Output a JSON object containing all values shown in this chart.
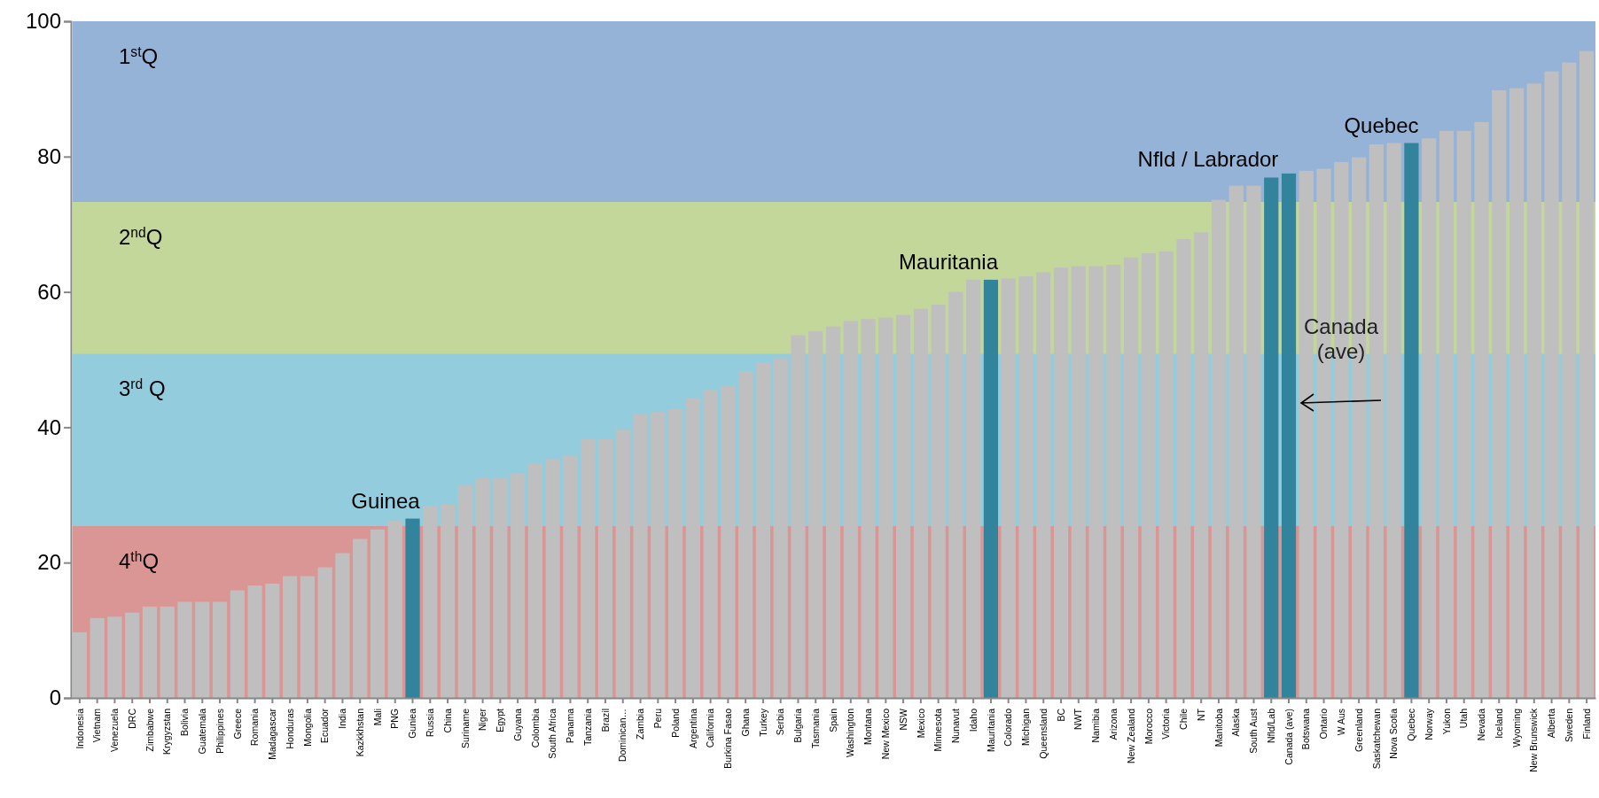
{
  "chart_data": {
    "type": "bar",
    "categories": [
      "Indonesia",
      "Vietnam",
      "Venezuela",
      "DRC",
      "Zimbabwe",
      "Krygyzstan",
      "Bolivia",
      "Guatemala",
      "Philippines",
      "Greece",
      "Romania",
      "Madagascar",
      "Honduras",
      "Mongolia",
      "Ecuador",
      "India",
      "Kazkkhstan",
      "Mali",
      "PNG",
      "Guniea",
      "Russia",
      "China",
      "Suriname",
      "Niger",
      "Egypt",
      "Guyana",
      "Colombia",
      "South Africa",
      "Panama",
      "Tanzania",
      "Brazil",
      "Dominican…",
      "Zambia",
      "Peru",
      "Poland",
      "Argentina",
      "California",
      "Burkina Fasao",
      "Ghana",
      "Turkey",
      "Serbia",
      "Bulgaria",
      "Tasmania",
      "Spain",
      "Washington",
      "Montana",
      "New Mexico",
      "NSW",
      "Mexico",
      "Minnesota",
      "Nunavut",
      "Idaho",
      "Mauritania",
      "Colorado",
      "Michigan",
      "Queensland",
      "BC",
      "NWT",
      "Namibia",
      "Arizona",
      "New Zealand",
      "Morocco",
      "Victoria",
      "Chile",
      "NT",
      "Manitoba",
      "Alaska",
      "South Aust",
      "Nfld/Lab",
      "Canada (ave)",
      "Botswana",
      "Ontario",
      "W Aus",
      "Greenland",
      "Saskatchewan",
      "Nova Scotia",
      "Quebec",
      "Norway",
      "Yukon",
      "Utah",
      "Nevada",
      "Iceland",
      "Wyoming",
      "New Brunswick",
      "Alberta",
      "Sweden",
      "Finland"
    ],
    "values": [
      9.7,
      11.8,
      12.0,
      12.6,
      13.5,
      13.5,
      14.2,
      14.2,
      14.2,
      15.9,
      16.6,
      16.9,
      18.0,
      18.0,
      19.3,
      21.4,
      23.5,
      24.9,
      26.2,
      26.5,
      28.4,
      28.6,
      31.4,
      32.5,
      32.5,
      33.2,
      34.6,
      35.3,
      35.8,
      38.3,
      38.3,
      39.7,
      42.0,
      42.3,
      42.7,
      44.3,
      45.5,
      46.1,
      48.3,
      49.6,
      50.2,
      53.6,
      54.2,
      54.9,
      55.7,
      56.0,
      56.2,
      56.6,
      57.5,
      58.1,
      60.0,
      61.8,
      61.8,
      62.0,
      62.3,
      62.9,
      63.6,
      63.8,
      63.8,
      64.0,
      65.1,
      65.7,
      66.0,
      67.8,
      68.8,
      73.6,
      75.7,
      75.7,
      76.9,
      77.5,
      77.9,
      78.2,
      79.2,
      79.9,
      81.8,
      82.0,
      82.0,
      82.7,
      83.8,
      83.8,
      85.1,
      89.8,
      90.1,
      90.8,
      92.6,
      93.9,
      95.6
    ],
    "colors": [
      "#bfbfbf",
      "#bfbfbf",
      "#bfbfbf",
      "#bfbfbf",
      "#bfbfbf",
      "#bfbfbf",
      "#bfbfbf",
      "#bfbfbf",
      "#bfbfbf",
      "#bfbfbf",
      "#bfbfbf",
      "#bfbfbf",
      "#bfbfbf",
      "#bfbfbf",
      "#bfbfbf",
      "#bfbfbf",
      "#bfbfbf",
      "#bfbfbf",
      "#bfbfbf",
      "#31849b",
      "#bfbfbf",
      "#bfbfbf",
      "#bfbfbf",
      "#bfbfbf",
      "#bfbfbf",
      "#bfbfbf",
      "#bfbfbf",
      "#bfbfbf",
      "#bfbfbf",
      "#bfbfbf",
      "#bfbfbf",
      "#bfbfbf",
      "#bfbfbf",
      "#bfbfbf",
      "#bfbfbf",
      "#bfbfbf",
      "#bfbfbf",
      "#bfbfbf",
      "#bfbfbf",
      "#bfbfbf",
      "#bfbfbf",
      "#bfbfbf",
      "#bfbfbf",
      "#bfbfbf",
      "#bfbfbf",
      "#bfbfbf",
      "#bfbfbf",
      "#bfbfbf",
      "#bfbfbf",
      "#bfbfbf",
      "#bfbfbf",
      "#bfbfbf",
      "#31849b",
      "#bfbfbf",
      "#bfbfbf",
      "#bfbfbf",
      "#bfbfbf",
      "#bfbfbf",
      "#bfbfbf",
      "#bfbfbf",
      "#bfbfbf",
      "#bfbfbf",
      "#bfbfbf",
      "#bfbfbf",
      "#bfbfbf",
      "#bfbfbf",
      "#bfbfbf",
      "#bfbfbf",
      "#31849b",
      "#31849b",
      "#bfbfbf",
      "#bfbfbf",
      "#bfbfbf",
      "#bfbfbf",
      "#bfbfbf",
      "#bfbfbf",
      "#31849b",
      "#bfbfbf",
      "#bfbfbf",
      "#bfbfbf",
      "#bfbfbf",
      "#bfbfbf",
      "#bfbfbf",
      "#bfbfbf",
      "#bfbfbf",
      "#bfbfbf",
      "#bfbfbf"
    ],
    "ylim": [
      0,
      100
    ],
    "yticks": [
      0,
      20,
      40,
      60,
      80,
      100
    ],
    "bands": [
      {
        "axis": "y",
        "from": 73.3,
        "to": 100,
        "label": "1$^{st}$Q",
        "color": "#95b3d7"
      },
      {
        "axis": "y",
        "from": 50.9,
        "to": 73.3,
        "label": "2$^{nd}$Q",
        "color": "#c4d79b"
      },
      {
        "axis": "y",
        "from": 25.4,
        "to": 50.9,
        "label": "3$^{rd}$ Q",
        "color": "#93cddd"
      },
      {
        "axis": "y",
        "from": 0,
        "to": 25.4,
        "label": "4$^{th}$Q",
        "color": "#da9694"
      }
    ],
    "annotations": [
      {
        "text": "Guinea",
        "x": "Guniea",
        "y": 26.5
      },
      {
        "text": "Mauritania",
        "x": "Mauritania",
        "y": 61.8
      },
      {
        "text": "Nfld / Labrador",
        "x": "Nfld/Lab",
        "y": 76.9
      },
      {
        "text": "Quebec",
        "x": "Quebec",
        "y": 82.0
      },
      "Canada\n(ave)"
    ]
  }
}
